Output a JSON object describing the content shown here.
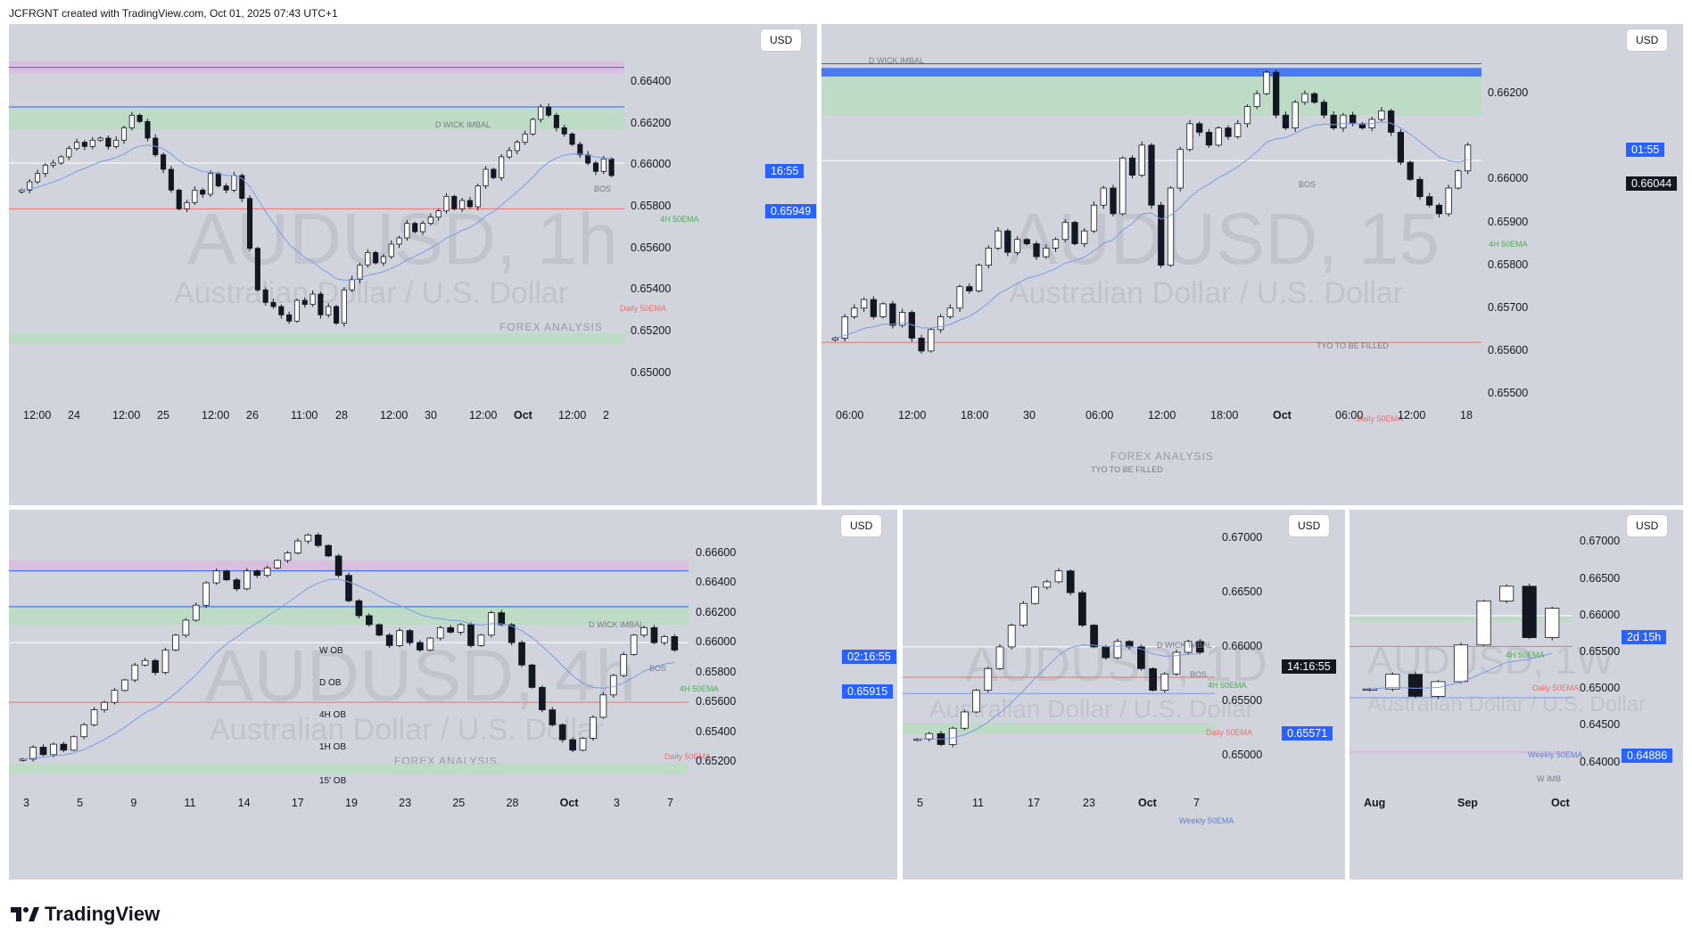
{
  "header": "JCFRGNT created with TradingView.com, Oct 01, 2025 07:43 UTC+1",
  "footer": "TradingView",
  "colors": {
    "panel_bg": "#d1d4dc",
    "bull": "#ffffff",
    "bear": "#131722",
    "ema_blue": "#7b9be6",
    "green_zone": "#b9dcc0",
    "purple_zone": "#d9b9e0",
    "blue_line": "#2962ff",
    "daily_ema": "#e57373",
    "price_tag": "#2962ff"
  },
  "chart_data": [
    {
      "type": "line",
      "symbol": "AUDUSD, 1h",
      "pair_name": "Australian Dollar / U.S. Dollar",
      "currency": "USD",
      "watermark_brand": "FOREX ANALYSIS",
      "ylim": [
        0.649,
        0.6655
      ],
      "y_ticks": [
        "0.66400",
        "0.66200",
        "0.66000",
        "0.65800",
        "0.65600",
        "0.65400",
        "0.65200",
        "0.65000"
      ],
      "x_ticks": [
        "12:00",
        "24",
        "12:00",
        "25",
        "12:00",
        "26",
        "11:00",
        "28",
        "12:00",
        "30",
        "12:00",
        "Oct",
        "12:00",
        "2"
      ],
      "price_label": "0.65949",
      "countdown": "16:55",
      "annotations": [
        "D WICK IMBAL",
        "BOS",
        "4H 50EMA",
        "Daily 50EMA"
      ],
      "close_series": [
        0.6588,
        0.6592,
        0.6596,
        0.66,
        0.6601,
        0.6604,
        0.6608,
        0.6611,
        0.6609,
        0.6612,
        0.6613,
        0.6609,
        0.6612,
        0.6618,
        0.6624,
        0.6621,
        0.6613,
        0.6605,
        0.6598,
        0.6588,
        0.6579,
        0.6582,
        0.6588,
        0.6586,
        0.6596,
        0.659,
        0.6588,
        0.6595,
        0.6584,
        0.656,
        0.654,
        0.6534,
        0.6532,
        0.6528,
        0.6525,
        0.6535,
        0.6533,
        0.6538,
        0.6528,
        0.6532,
        0.6524,
        0.654,
        0.6545,
        0.6552,
        0.6558,
        0.6553,
        0.6556,
        0.6562,
        0.6565,
        0.6572,
        0.6568,
        0.6572,
        0.6575,
        0.6578,
        0.6585,
        0.6579,
        0.6583,
        0.658,
        0.659,
        0.6598,
        0.6594,
        0.6604,
        0.6607,
        0.6611,
        0.6615,
        0.6622,
        0.6628,
        0.6624,
        0.6618,
        0.6615,
        0.661,
        0.6605,
        0.6601,
        0.6597,
        0.6603,
        0.6595
      ]
    },
    {
      "type": "line",
      "symbol": "AUDUSD, 15",
      "pair_name": "Australian Dollar / U.S. Dollar",
      "currency": "USD",
      "watermark_brand": "FOREX ANALYSIS",
      "ylim": [
        0.655,
        0.663
      ],
      "y_ticks": [
        "0.66200",
        "0.66000",
        "0.65900",
        "0.65800",
        "0.65700",
        "0.65600",
        "0.65500"
      ],
      "x_ticks": [
        "06:00",
        "12:00",
        "18:00",
        "30",
        "06:00",
        "12:00",
        "18:00",
        "Oct",
        "06:00",
        "12:00",
        "18"
      ],
      "price_label": "0.66044",
      "countdown": "01:55",
      "annotations": [
        "D WICK IMBAL",
        "BOS",
        "4H 50EMA",
        "Daily 50EMA",
        "TYO TO BE  FILLED",
        "TYO TO BE  FILLED"
      ],
      "close_series": [
        0.6563,
        0.6568,
        0.657,
        0.6572,
        0.6568,
        0.6571,
        0.6566,
        0.6569,
        0.6563,
        0.656,
        0.6565,
        0.6568,
        0.657,
        0.6575,
        0.6574,
        0.658,
        0.6584,
        0.6588,
        0.6583,
        0.6586,
        0.6585,
        0.6582,
        0.6584,
        0.6586,
        0.659,
        0.6585,
        0.6588,
        0.6594,
        0.6598,
        0.6592,
        0.6605,
        0.6601,
        0.6608,
        0.6594,
        0.658,
        0.6598,
        0.6607,
        0.6613,
        0.6611,
        0.6608,
        0.6612,
        0.661,
        0.6613,
        0.6617,
        0.662,
        0.6625,
        0.6615,
        0.6612,
        0.6618,
        0.662,
        0.6618,
        0.6615,
        0.6612,
        0.6615,
        0.6613,
        0.6612,
        0.6614,
        0.6616,
        0.6611,
        0.6604,
        0.66,
        0.6596,
        0.6594,
        0.6592,
        0.6598,
        0.6602,
        0.6608
      ]
    },
    {
      "type": "line",
      "symbol": "AUDUSD, 4h",
      "pair_name": "Australian Dollar / U.S. Dollar",
      "currency": "USD",
      "watermark_brand": "FOREX ANALYSIS",
      "ylim": [
        0.651,
        0.668
      ],
      "y_ticks": [
        "0.66600",
        "0.66400",
        "0.66200",
        "0.66000",
        "0.65800",
        "0.65600",
        "0.65400",
        "0.65200"
      ],
      "x_ticks": [
        "3",
        "5",
        "9",
        "11",
        "14",
        "17",
        "19",
        "23",
        "25",
        "28",
        "Oct",
        "3",
        "7"
      ],
      "price_label": "0.65915",
      "countdown": "02:16:55",
      "annotations": [
        "D WICK IMBAL",
        "BOS",
        "4H 50EMA",
        "Daily 50EMA"
      ],
      "legend": [
        "W OB",
        "D OB",
        "4H OB",
        "1H OB",
        "15' OB"
      ],
      "close_series": [
        0.6522,
        0.653,
        0.6525,
        0.6532,
        0.6528,
        0.6537,
        0.6545,
        0.6555,
        0.656,
        0.6568,
        0.6575,
        0.6585,
        0.6588,
        0.658,
        0.6595,
        0.6605,
        0.6615,
        0.6625,
        0.664,
        0.6648,
        0.6642,
        0.6636,
        0.6648,
        0.6645,
        0.665,
        0.6655,
        0.666,
        0.6668,
        0.6672,
        0.6665,
        0.6658,
        0.6645,
        0.6628,
        0.6618,
        0.6612,
        0.6605,
        0.6598,
        0.6608,
        0.66,
        0.6595,
        0.6603,
        0.661,
        0.6607,
        0.6612,
        0.6598,
        0.6605,
        0.662,
        0.6612,
        0.66,
        0.6585,
        0.657,
        0.6555,
        0.6545,
        0.6535,
        0.6528,
        0.6536,
        0.655,
        0.6565,
        0.6578,
        0.6592,
        0.6605,
        0.661,
        0.66,
        0.6604,
        0.6595
      ]
    },
    {
      "type": "line",
      "symbol": "AUDUSD, 1D",
      "pair_name": "Australian Dollar / U.S. Dollar",
      "currency": "USD",
      "ylim": [
        0.648,
        0.671
      ],
      "y_ticks": [
        "0.67000",
        "0.66500",
        "0.66000",
        "0.65500",
        "0.65000"
      ],
      "x_ticks": [
        "5",
        "11",
        "17",
        "23",
        "Oct",
        "7"
      ],
      "price_label": "0.65571",
      "countdown": "14:16:55",
      "annotations": [
        "D WICK IMBAL",
        "4H 50EMA",
        "Daily 50EMA",
        "BOS",
        "Weekly 50EMA"
      ],
      "close_series": [
        0.6515,
        0.652,
        0.651,
        0.6525,
        0.654,
        0.656,
        0.658,
        0.66,
        0.662,
        0.664,
        0.6655,
        0.666,
        0.667,
        0.665,
        0.662,
        0.66,
        0.659,
        0.6605,
        0.66,
        0.658,
        0.656,
        0.6575,
        0.6595,
        0.6605,
        0.6595
      ]
    },
    {
      "type": "line",
      "symbol": "AUDUSD, 1W",
      "pair_name": "Australian Dollar / U.S. Dollar",
      "currency": "USD",
      "ylim": [
        0.638,
        0.672
      ],
      "y_ticks": [
        "0.67000",
        "0.66500",
        "0.66000",
        "0.65500",
        "0.65000",
        "0.64500",
        "0.64000"
      ],
      "x_ticks": [
        "Aug",
        "Sep",
        "Oct"
      ],
      "price_label": "0.64886",
      "countdown": "2d 15h",
      "annotations": [
        "4H 50EMA",
        "Daily 50EMA",
        "Weekly 50EMA",
        "W IMB"
      ],
      "close_series": [
        0.65,
        0.652,
        0.649,
        0.651,
        0.656,
        0.662,
        0.664,
        0.657,
        0.661
      ]
    }
  ]
}
